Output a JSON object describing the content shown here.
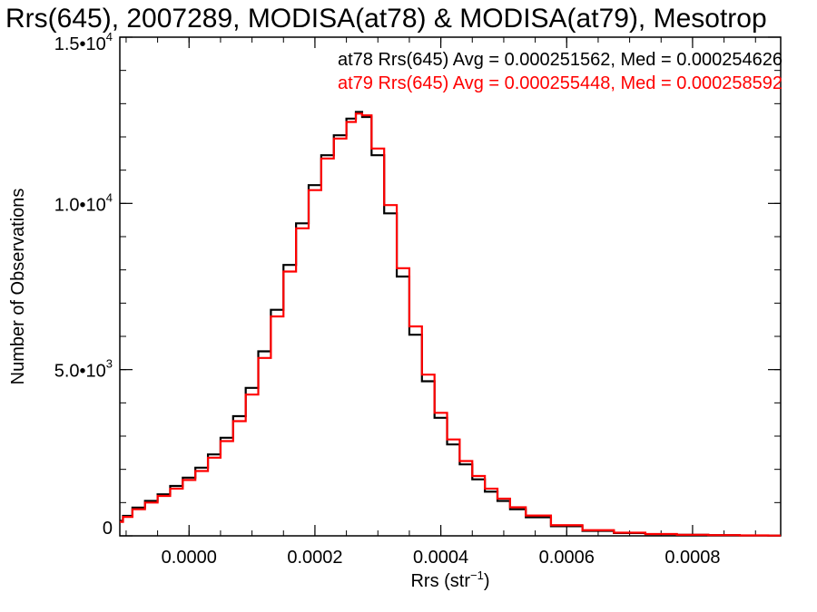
{
  "chart_data": {
    "type": "line",
    "title": "Rrs(645), 2007289, MODISA(at78) & MODISA(at79), Mesotrop",
    "xlabel_base": "Rrs (str",
    "xlabel_exp": "−1",
    "xlabel_close": ")",
    "ylabel": "Number of Observations",
    "xlim": [
      -0.00011,
      0.00094
    ],
    "ylim": [
      0,
      15000
    ],
    "x_ticks": [
      {
        "value": 0.0,
        "label": "0.0000"
      },
      {
        "value": 0.0002,
        "label": "0.0002"
      },
      {
        "value": 0.0004,
        "label": "0.0004"
      },
      {
        "value": 0.0006,
        "label": "0.0006"
      },
      {
        "value": 0.0008,
        "label": "0.0008"
      }
    ],
    "y_ticks": [
      {
        "value": 0,
        "mant": "0",
        "exp": ""
      },
      {
        "value": 5000,
        "mant": "5.0•10",
        "exp": "3"
      },
      {
        "value": 10000,
        "mant": "1.0•10",
        "exp": "4"
      },
      {
        "value": 15000,
        "mant": "1.5•10",
        "exp": "4"
      }
    ],
    "legend_placement": "top-right",
    "annotations": [
      {
        "text": "at78 Rrs(645) Avg = 0.000251562, Med = 0.000254626",
        "color": "#000000"
      },
      {
        "text": "at79 Rrs(645) Avg = 0.000255448, Med = 0.000258592",
        "color": "#ff0000"
      }
    ],
    "series": [
      {
        "color": "#000000",
        "x": [
          -0.00011,
          -0.0001,
          -8e-05,
          -6e-05,
          -4e-05,
          -2e-05,
          0.0,
          2e-05,
          4e-05,
          6e-05,
          8e-05,
          0.0001,
          0.00012,
          0.00014,
          0.00016,
          0.00018,
          0.0002,
          0.00022,
          0.00024,
          0.00026,
          0.00027,
          0.00028,
          0.0003,
          0.00032,
          0.00034,
          0.00036,
          0.00038,
          0.0004,
          0.00042,
          0.00044,
          0.00046,
          0.00048,
          0.0005,
          0.00052,
          0.00055,
          0.0006,
          0.00065,
          0.0007,
          0.00075,
          0.0008,
          0.00085,
          0.0009,
          0.00094
        ],
        "y": [
          450,
          600,
          850,
          1050,
          1250,
          1500,
          1750,
          2050,
          2450,
          2950,
          3600,
          4450,
          5550,
          6800,
          8150,
          9400,
          10550,
          11450,
          12050,
          12550,
          12750,
          12600,
          11450,
          9700,
          7800,
          6050,
          4650,
          3550,
          2750,
          2150,
          1700,
          1330,
          1050,
          800,
          560,
          290,
          150,
          85,
          50,
          30,
          20,
          12,
          8
        ]
      },
      {
        "color": "#ff0000",
        "x": [
          -0.00011,
          -0.0001,
          -8e-05,
          -6e-05,
          -4e-05,
          -2e-05,
          0.0,
          2e-05,
          4e-05,
          6e-05,
          8e-05,
          0.0001,
          0.00012,
          0.00014,
          0.00016,
          0.00018,
          0.0002,
          0.00022,
          0.00024,
          0.00026,
          0.00027,
          0.00028,
          0.0003,
          0.00032,
          0.00034,
          0.00036,
          0.00038,
          0.0004,
          0.00042,
          0.00044,
          0.00046,
          0.00048,
          0.0005,
          0.00052,
          0.00055,
          0.0006,
          0.00065,
          0.0007,
          0.00075,
          0.0008,
          0.00085,
          0.0009,
          0.00094
        ],
        "y": [
          420,
          570,
          800,
          1000,
          1200,
          1420,
          1680,
          1950,
          2350,
          2850,
          3450,
          4250,
          5350,
          6600,
          7950,
          9250,
          10400,
          11350,
          11950,
          12450,
          12700,
          12650,
          11650,
          9950,
          8050,
          6300,
          4850,
          3700,
          2900,
          2250,
          1800,
          1420,
          1120,
          860,
          610,
          320,
          170,
          95,
          55,
          32,
          22,
          14,
          9
        ]
      }
    ]
  }
}
